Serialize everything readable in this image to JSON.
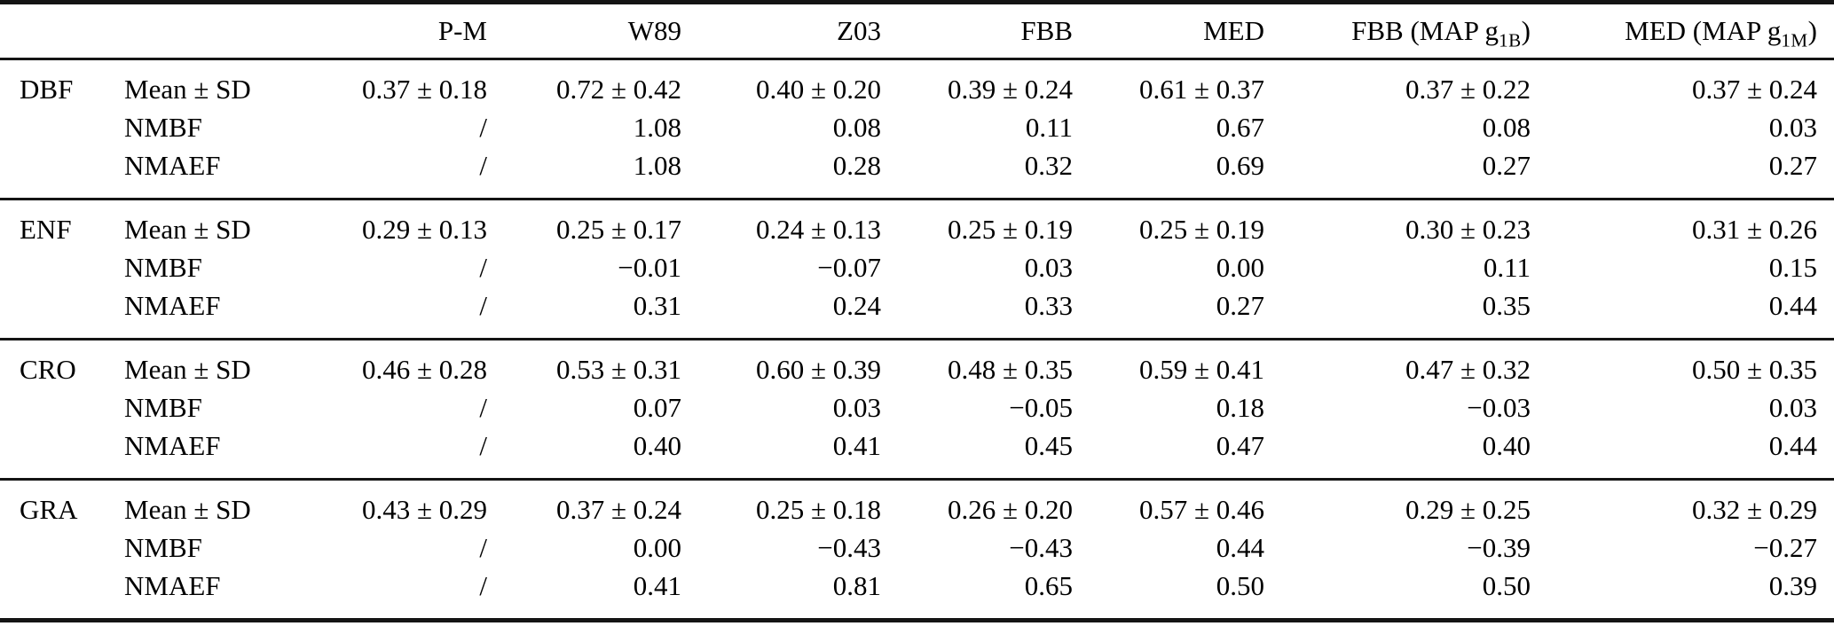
{
  "table": {
    "columns": [
      "P-M",
      "W89",
      "Z03",
      "FBB",
      "MED",
      {
        "pre": "FBB (MAP g",
        "sub": "1B",
        "post": ")"
      },
      {
        "pre": "MED (MAP g",
        "sub": "1M",
        "post": ")"
      }
    ],
    "sections": [
      {
        "group": "DBF",
        "rows": [
          {
            "metric": "Mean ± SD",
            "values": [
              "0.37 ± 0.18",
              "0.72 ± 0.42",
              "0.40 ± 0.20",
              "0.39 ± 0.24",
              "0.61 ± 0.37",
              "0.37 ± 0.22",
              "0.37 ± 0.24"
            ]
          },
          {
            "metric": "NMBF",
            "values": [
              "/",
              "1.08",
              "0.08",
              "0.11",
              "0.67",
              "0.08",
              "0.03"
            ]
          },
          {
            "metric": "NMAEF",
            "values": [
              "/",
              "1.08",
              "0.28",
              "0.32",
              "0.69",
              "0.27",
              "0.27"
            ]
          }
        ]
      },
      {
        "group": "ENF",
        "rows": [
          {
            "metric": "Mean ± SD",
            "values": [
              "0.29 ± 0.13",
              "0.25 ± 0.17",
              "0.24 ± 0.13",
              "0.25 ± 0.19",
              "0.25 ± 0.19",
              "0.30 ± 0.23",
              "0.31 ± 0.26"
            ]
          },
          {
            "metric": "NMBF",
            "values": [
              "/",
              "−0.01",
              "−0.07",
              "0.03",
              "0.00",
              "0.11",
              "0.15"
            ]
          },
          {
            "metric": "NMAEF",
            "values": [
              "/",
              "0.31",
              "0.24",
              "0.33",
              "0.27",
              "0.35",
              "0.44"
            ]
          }
        ]
      },
      {
        "group": "CRO",
        "rows": [
          {
            "metric": "Mean ± SD",
            "values": [
              "0.46 ± 0.28",
              "0.53 ± 0.31",
              "0.60 ± 0.39",
              "0.48 ± 0.35",
              "0.59 ± 0.41",
              "0.47 ± 0.32",
              "0.50 ± 0.35"
            ]
          },
          {
            "metric": "NMBF",
            "values": [
              "/",
              "0.07",
              "0.03",
              "−0.05",
              "0.18",
              "−0.03",
              "0.03"
            ]
          },
          {
            "metric": "NMAEF",
            "values": [
              "/",
              "0.40",
              "0.41",
              "0.45",
              "0.47",
              "0.40",
              "0.44"
            ]
          }
        ]
      },
      {
        "group": "GRA",
        "rows": [
          {
            "metric": "Mean ± SD",
            "values": [
              "0.43 ± 0.29",
              "0.37 ± 0.24",
              "0.25 ± 0.18",
              "0.26 ± 0.20",
              "0.57 ± 0.46",
              "0.29 ± 0.25",
              "0.32 ± 0.29"
            ]
          },
          {
            "metric": "NMBF",
            "values": [
              "/",
              "0.00",
              "−0.43",
              "−0.43",
              "0.44",
              "−0.39",
              "−0.27"
            ]
          },
          {
            "metric": "NMAEF",
            "values": [
              "/",
              "0.41",
              "0.81",
              "0.65",
              "0.50",
              "0.50",
              "0.39"
            ]
          }
        ]
      }
    ]
  },
  "colors": {
    "rule": "#141414",
    "text": "#000000",
    "background": "#ffffff"
  }
}
